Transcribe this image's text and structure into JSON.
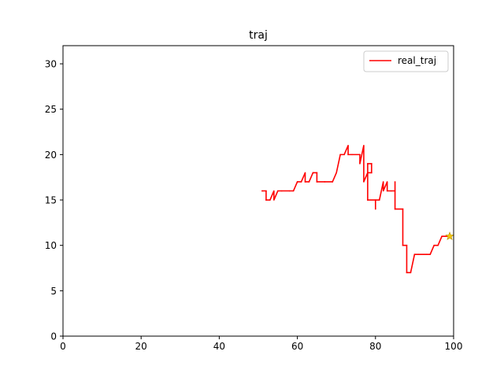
{
  "chart_data": {
    "type": "line",
    "title": "traj",
    "xlabel": "",
    "ylabel": "",
    "xlim": [
      0,
      100
    ],
    "ylim": [
      0,
      32
    ],
    "xticks": [
      0,
      20,
      40,
      60,
      80,
      100
    ],
    "yticks": [
      0,
      5,
      10,
      15,
      20,
      25,
      30
    ],
    "grid": false,
    "legend": {
      "placement": "top-right",
      "entries": [
        "real_traj"
      ]
    },
    "series": [
      {
        "name": "real_traj",
        "color": "#ff0000",
        "points": [
          [
            51,
            16
          ],
          [
            52,
            16
          ],
          [
            52,
            15
          ],
          [
            53,
            15
          ],
          [
            54,
            16
          ],
          [
            54,
            15
          ],
          [
            55,
            16
          ],
          [
            56,
            16
          ],
          [
            58,
            16
          ],
          [
            59,
            16
          ],
          [
            60,
            17
          ],
          [
            61,
            17
          ],
          [
            62,
            18
          ],
          [
            62,
            17
          ],
          [
            63,
            17
          ],
          [
            64,
            18
          ],
          [
            65,
            18
          ],
          [
            65,
            17
          ],
          [
            67,
            17
          ],
          [
            69,
            17
          ],
          [
            70,
            18
          ],
          [
            71,
            20
          ],
          [
            72,
            20
          ],
          [
            73,
            21
          ],
          [
            73,
            20
          ],
          [
            74,
            20
          ],
          [
            76,
            20
          ],
          [
            76,
            19
          ],
          [
            77,
            21
          ],
          [
            77,
            17
          ],
          [
            78,
            18
          ],
          [
            78,
            19
          ],
          [
            79,
            19
          ],
          [
            79,
            18
          ],
          [
            78,
            18
          ],
          [
            78,
            15
          ],
          [
            80,
            15
          ],
          [
            80,
            14
          ],
          [
            80,
            15
          ],
          [
            81,
            15
          ],
          [
            82,
            17
          ],
          [
            82,
            16
          ],
          [
            83,
            17
          ],
          [
            83,
            16
          ],
          [
            84,
            16
          ],
          [
            85,
            16
          ],
          [
            85,
            17
          ],
          [
            85,
            14
          ],
          [
            87,
            14
          ],
          [
            87,
            10
          ],
          [
            88,
            10
          ],
          [
            88,
            7
          ],
          [
            89,
            7
          ],
          [
            90,
            9
          ],
          [
            91,
            9
          ],
          [
            93,
            9
          ],
          [
            94,
            9
          ],
          [
            95,
            10
          ],
          [
            96,
            10
          ],
          [
            97,
            11
          ],
          [
            99,
            11
          ]
        ]
      }
    ],
    "marker": {
      "x": 99,
      "y": 11,
      "shape": "star",
      "color": "#f2c40f"
    }
  }
}
